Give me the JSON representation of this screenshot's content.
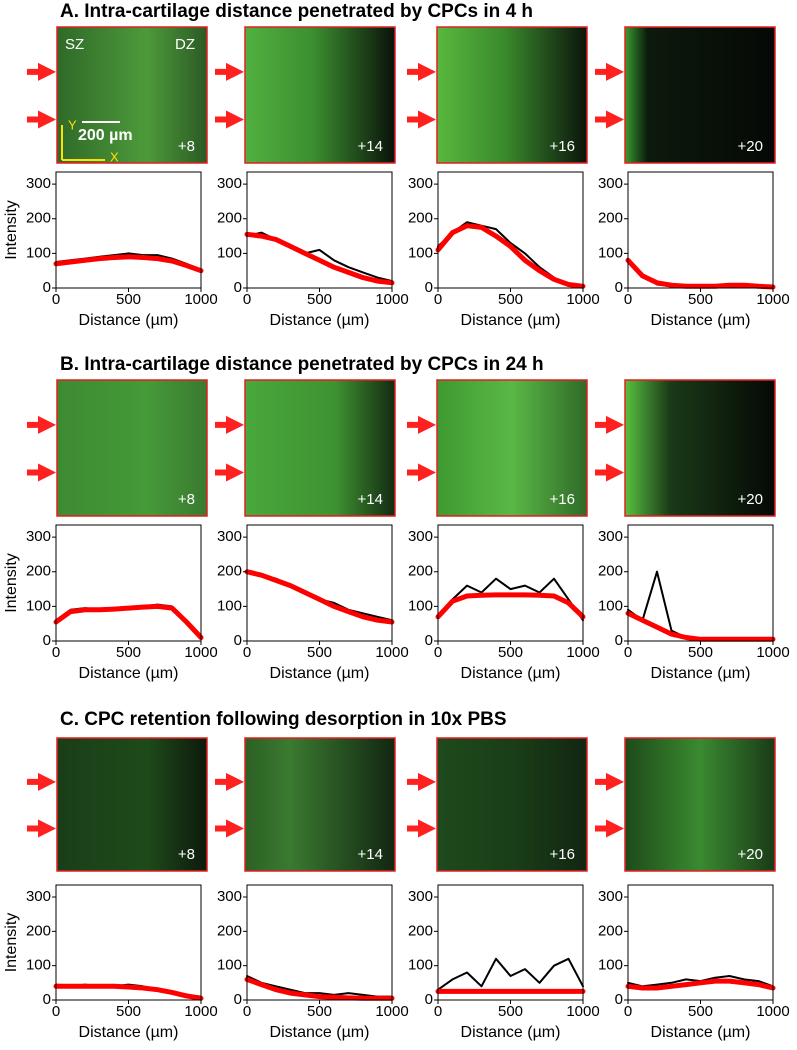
{
  "panels": [
    {
      "title": "A. Intra-cartilage distance penetrated by CPCs in 4 h",
      "image_labels": [
        "+8",
        "+14",
        "+16",
        "+20"
      ]
    },
    {
      "title": "B. Intra-cartilage distance penetrated by CPCs in 24 h",
      "image_labels": [
        "+8",
        "+14",
        "+16",
        "+20"
      ]
    },
    {
      "title": "C. CPC retention following desorption in 10x PBS",
      "image_labels": [
        "+8",
        "+14",
        "+16",
        "+20"
      ]
    }
  ],
  "image_annotations": {
    "sz": "SZ",
    "dz": "DZ",
    "scale": "200 µm",
    "y": "Y",
    "x": "X"
  },
  "chart_data": [
    {
      "type": "line",
      "ylabel": "Intensity",
      "xlabel": "Distance (µm)",
      "x": [
        0,
        100,
        200,
        300,
        400,
        500,
        600,
        700,
        800,
        900,
        1000
      ],
      "xlim": [
        0,
        1000
      ],
      "xticks": [
        0,
        500,
        1000
      ],
      "ylim": [
        0,
        335
      ],
      "yticks": [
        0,
        100,
        200,
        300
      ],
      "series": [
        {
          "color": "#000000",
          "values": [
            75,
            80,
            85,
            90,
            95,
            100,
            95,
            95,
            85,
            70,
            50
          ]
        },
        {
          "color": "#ff0000",
          "values": [
            70,
            75,
            80,
            85,
            88,
            90,
            88,
            85,
            78,
            65,
            50
          ]
        }
      ]
    },
    {
      "type": "line",
      "xlabel": "Distance (µm)",
      "x": [
        0,
        100,
        200,
        300,
        400,
        500,
        600,
        700,
        800,
        900,
        1000
      ],
      "xlim": [
        0,
        1000
      ],
      "xticks": [
        0,
        500,
        1000
      ],
      "ylim": [
        0,
        335
      ],
      "yticks": [
        0,
        100,
        200,
        300
      ],
      "series": [
        {
          "color": "#000000",
          "values": [
            150,
            160,
            140,
            120,
            100,
            110,
            80,
            60,
            45,
            30,
            20
          ]
        },
        {
          "color": "#ff0000",
          "values": [
            155,
            150,
            140,
            120,
            100,
            80,
            60,
            45,
            30,
            20,
            15
          ]
        }
      ]
    },
    {
      "type": "line",
      "xlabel": "Distance (µm)",
      "x": [
        0,
        100,
        200,
        300,
        400,
        500,
        600,
        700,
        800,
        900,
        1000
      ],
      "xlim": [
        0,
        1000
      ],
      "xticks": [
        0,
        500,
        1000
      ],
      "ylim": [
        0,
        335
      ],
      "yticks": [
        0,
        100,
        200,
        300
      ],
      "series": [
        {
          "color": "#000000",
          "values": [
            120,
            160,
            190,
            180,
            170,
            130,
            100,
            60,
            30,
            10,
            5
          ]
        },
        {
          "color": "#ff0000",
          "values": [
            110,
            160,
            180,
            175,
            150,
            120,
            80,
            50,
            25,
            10,
            5
          ]
        }
      ]
    },
    {
      "type": "line",
      "xlabel": "Distance (µm)",
      "x": [
        0,
        100,
        200,
        300,
        400,
        500,
        600,
        700,
        800,
        900,
        1000
      ],
      "xlim": [
        0,
        1000
      ],
      "xticks": [
        0,
        500,
        1000
      ],
      "ylim": [
        0,
        335
      ],
      "yticks": [
        0,
        100,
        200,
        300
      ],
      "series": [
        {
          "color": "#000000",
          "values": [
            80,
            40,
            10,
            5,
            5,
            5,
            5,
            5,
            5,
            5,
            5
          ]
        },
        {
          "color": "#ff0000",
          "values": [
            80,
            35,
            15,
            8,
            5,
            5,
            5,
            8,
            8,
            5,
            3
          ]
        }
      ]
    },
    {
      "type": "line",
      "ylabel": "Intensity",
      "xlabel": "Distance (µm)",
      "x": [
        0,
        100,
        200,
        300,
        400,
        500,
        600,
        700,
        800,
        900,
        1000
      ],
      "xlim": [
        0,
        1000
      ],
      "xticks": [
        0,
        500,
        1000
      ],
      "ylim": [
        0,
        335
      ],
      "yticks": [
        0,
        100,
        200,
        300
      ],
      "series": [
        {
          "color": "#000000",
          "values": [
            60,
            90,
            95,
            90,
            95,
            95,
            100,
            105,
            100,
            60,
            10
          ]
        },
        {
          "color": "#ff0000",
          "values": [
            55,
            85,
            90,
            90,
            92,
            95,
            98,
            100,
            95,
            55,
            10
          ]
        }
      ]
    },
    {
      "type": "line",
      "xlabel": "Distance (µm)",
      "x": [
        0,
        100,
        200,
        300,
        400,
        500,
        600,
        700,
        800,
        900,
        1000
      ],
      "xlim": [
        0,
        1000
      ],
      "xticks": [
        0,
        500,
        1000
      ],
      "ylim": [
        0,
        335
      ],
      "yticks": [
        0,
        100,
        200,
        300
      ],
      "series": [
        {
          "color": "#000000",
          "values": [
            200,
            190,
            180,
            160,
            140,
            120,
            110,
            90,
            80,
            70,
            60
          ]
        },
        {
          "color": "#ff0000",
          "values": [
            200,
            190,
            175,
            160,
            140,
            120,
            100,
            85,
            70,
            60,
            55
          ]
        }
      ]
    },
    {
      "type": "line",
      "xlabel": "Distance (µm)",
      "x": [
        0,
        100,
        200,
        300,
        400,
        500,
        600,
        700,
        800,
        900,
        1000
      ],
      "xlim": [
        0,
        1000
      ],
      "xticks": [
        0,
        500,
        1000
      ],
      "ylim": [
        0,
        335
      ],
      "yticks": [
        0,
        100,
        200,
        300
      ],
      "series": [
        {
          "color": "#000000",
          "values": [
            70,
            120,
            160,
            140,
            180,
            150,
            160,
            140,
            180,
            120,
            60
          ]
        },
        {
          "color": "#ff0000",
          "values": [
            70,
            115,
            130,
            132,
            133,
            133,
            133,
            132,
            130,
            110,
            70
          ]
        }
      ]
    },
    {
      "type": "line",
      "xlabel": "Distance (µm)",
      "x": [
        0,
        100,
        200,
        300,
        400,
        500,
        600,
        700,
        800,
        900,
        1000
      ],
      "xlim": [
        0,
        1000
      ],
      "xticks": [
        0,
        500,
        1000
      ],
      "ylim": [
        0,
        335
      ],
      "yticks": [
        0,
        100,
        200,
        300
      ],
      "series": [
        {
          "color": "#000000",
          "values": [
            90,
            60,
            200,
            30,
            10,
            5,
            5,
            5,
            5,
            5,
            5
          ]
        },
        {
          "color": "#ff0000",
          "values": [
            80,
            60,
            40,
            20,
            10,
            5,
            5,
            5,
            5,
            5,
            5
          ]
        }
      ]
    },
    {
      "type": "line",
      "ylabel": "Intensity",
      "xlabel": "Distance (µm)",
      "x": [
        0,
        100,
        200,
        300,
        400,
        500,
        600,
        700,
        800,
        900,
        1000
      ],
      "xlim": [
        0,
        1000
      ],
      "xticks": [
        0,
        500,
        1000
      ],
      "ylim": [
        0,
        335
      ],
      "yticks": [
        0,
        100,
        200,
        300
      ],
      "series": [
        {
          "color": "#000000",
          "values": [
            45,
            40,
            45,
            40,
            40,
            45,
            40,
            30,
            25,
            15,
            10
          ]
        },
        {
          "color": "#ff0000",
          "values": [
            40,
            40,
            40,
            40,
            40,
            38,
            35,
            30,
            22,
            12,
            5
          ]
        }
      ]
    },
    {
      "type": "line",
      "xlabel": "Distance (µm)",
      "x": [
        0,
        100,
        200,
        300,
        400,
        500,
        600,
        700,
        800,
        900,
        1000
      ],
      "xlim": [
        0,
        1000
      ],
      "xticks": [
        0,
        500,
        1000
      ],
      "ylim": [
        0,
        335
      ],
      "yticks": [
        0,
        100,
        200,
        300
      ],
      "series": [
        {
          "color": "#000000",
          "values": [
            70,
            50,
            40,
            30,
            20,
            20,
            15,
            20,
            15,
            10,
            10
          ]
        },
        {
          "color": "#ff0000",
          "values": [
            60,
            45,
            30,
            20,
            15,
            10,
            8,
            6,
            5,
            5,
            5
          ]
        }
      ]
    },
    {
      "type": "line",
      "xlabel": "Distance (µm)",
      "x": [
        0,
        100,
        200,
        300,
        400,
        500,
        600,
        700,
        800,
        900,
        1000
      ],
      "xlim": [
        0,
        1000
      ],
      "xticks": [
        0,
        500,
        1000
      ],
      "ylim": [
        0,
        335
      ],
      "yticks": [
        0,
        100,
        200,
        300
      ],
      "series": [
        {
          "color": "#000000",
          "values": [
            30,
            60,
            80,
            40,
            120,
            70,
            90,
            50,
            100,
            120,
            40
          ]
        },
        {
          "color": "#ff0000",
          "values": [
            25,
            25,
            25,
            25,
            25,
            25,
            25,
            25,
            25,
            25,
            25
          ]
        }
      ]
    },
    {
      "type": "line",
      "xlabel": "Distance (µm)",
      "x": [
        0,
        100,
        200,
        300,
        400,
        500,
        600,
        700,
        800,
        900,
        1000
      ],
      "xlim": [
        0,
        1000
      ],
      "xticks": [
        0,
        500,
        1000
      ],
      "ylim": [
        0,
        335
      ],
      "yticks": [
        0,
        100,
        200,
        300
      ],
      "series": [
        {
          "color": "#000000",
          "values": [
            50,
            40,
            45,
            50,
            60,
            55,
            65,
            70,
            60,
            55,
            40
          ]
        },
        {
          "color": "#ff0000",
          "values": [
            40,
            35,
            35,
            40,
            45,
            50,
            55,
            55,
            50,
            45,
            35
          ]
        }
      ]
    }
  ]
}
